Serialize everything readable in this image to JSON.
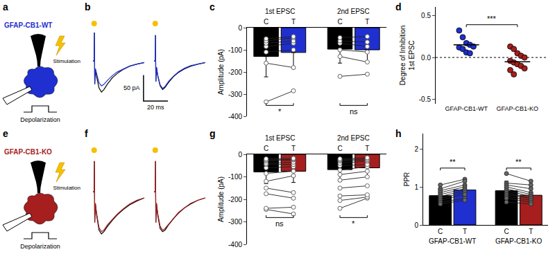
{
  "diagrams": [
    {
      "panel": "a",
      "label": "GFAP-CB1-WT",
      "color": "#1f2fd0",
      "stimulation": "Stimulation",
      "depolarization": "Depolarization"
    },
    {
      "panel": "e",
      "label": "GFAP-CB1-KO",
      "color": "#a61e1e",
      "stimulation": "Stimulation",
      "depolarization": "Depolarization"
    }
  ],
  "chart_data": [
    {
      "panel": "b",
      "type": "line",
      "tick_labels": false,
      "x": [
        0,
        1,
        1.2,
        1.5,
        2,
        3,
        5,
        7,
        9,
        12,
        16,
        20,
        25,
        30,
        36,
        42,
        46,
        50,
        51,
        51.2,
        51.5,
        52,
        53,
        55,
        57,
        59,
        62,
        66,
        70,
        75,
        80,
        86,
        92
      ],
      "series": [
        {
          "color": "#000000",
          "values": [
            0,
            0,
            55,
            -45,
            -15,
            -30,
            -52,
            -60,
            -55,
            -44,
            -32,
            -24,
            -16,
            -10,
            -6,
            -3,
            null,
            0,
            0,
            50,
            -40,
            -12,
            -28,
            -48,
            -55,
            -51,
            -41,
            -30,
            -22,
            -15,
            -10,
            -6,
            -3
          ]
        },
        {
          "color": "#1f2fd0",
          "values": [
            0,
            0,
            55,
            -45,
            -15,
            -25,
            -42,
            -48,
            -45,
            -37,
            -28,
            -21,
            -15,
            -10,
            -6,
            -3,
            null,
            0,
            0,
            50,
            -40,
            -12,
            -27,
            -46,
            -53,
            -49,
            -39,
            -29,
            -21,
            -14,
            -9,
            -6,
            -3
          ]
        }
      ],
      "stimuli": {
        "x": [
          1,
          51
        ],
        "color": "#f5c000"
      },
      "scale_bar": {
        "x": 20,
        "x_label": "20 ms",
        "y": 50,
        "y_label": "50 pA"
      }
    },
    {
      "panel": "c",
      "type": "bar",
      "categories": [
        "C",
        "T",
        "C",
        "T"
      ],
      "groups": [
        "1st EPSC",
        "2nd EPSC"
      ],
      "ylabel": "Amplitude (pA)",
      "ylim": [
        -400,
        0
      ],
      "yticks": [
        -400,
        -300,
        -200,
        -100,
        0
      ],
      "values": [
        -130,
        -112,
        -97,
        -100
      ],
      "errors": [
        92,
        73,
        63,
        55
      ],
      "colors": [
        "#000000",
        "#1f2fd0",
        "#000000",
        "#1f2fd0"
      ],
      "marker": "circle-open",
      "points": [
        [
          -335,
          -160,
          -110,
          -85,
          -70,
          -60,
          -50
        ],
        [
          -285,
          -180,
          -100,
          -70,
          -60,
          -45,
          -40
        ],
        [
          -220,
          -130,
          -100,
          -70,
          -60,
          -45
        ],
        [
          -210,
          -155,
          -110,
          -85,
          -65,
          -40
        ]
      ],
      "significance": [
        {
          "text": "*",
          "pair": [
            0,
            1
          ]
        },
        {
          "text": "ns",
          "pair": [
            2,
            3
          ]
        }
      ]
    },
    {
      "panel": "d",
      "type": "scatter",
      "categories": [
        "GFAP-CB1-WT",
        "GFAP-CB1-KO"
      ],
      "ylabel": "Degree of Inhibition 1st EPSC",
      "ylim": [
        -0.55,
        0.6
      ],
      "yticks": [
        -0.5,
        {
          "value": 0,
          "label": "0.0"
        },
        0.5
      ],
      "colors": [
        "#1f2fd0",
        "#a61e1e"
      ],
      "points": [
        [
          0.32,
          0.24,
          0.17,
          0.15,
          0.13,
          0.12,
          0.1,
          0.06,
          0.05
        ],
        [
          0.13,
          0.1,
          0.05,
          0.02,
          0,
          -0.04,
          -0.06,
          -0.08,
          -0.1,
          -0.13,
          -0.15,
          -0.2
        ]
      ],
      "means": [
        0.15,
        -0.05
      ],
      "reference_line": 0,
      "significance": [
        {
          "text": "***",
          "pair": [
            0,
            1
          ]
        }
      ]
    },
    {
      "panel": "f",
      "type": "line",
      "tick_labels": false,
      "x": [
        0,
        1,
        1.2,
        1.5,
        2,
        3,
        5,
        7,
        9,
        12,
        16,
        20,
        25,
        30,
        36,
        42,
        46,
        50,
        51,
        51.2,
        51.5,
        52,
        53,
        55,
        57,
        59,
        62,
        66,
        70,
        75,
        80,
        86,
        92
      ],
      "series": [
        {
          "color": "#000000",
          "values": [
            0,
            0,
            40,
            -40,
            -15,
            -30,
            -50,
            -55,
            -52,
            -45,
            -37,
            -30,
            -23,
            -17,
            -12,
            -8,
            null,
            0,
            0,
            40,
            -40,
            -15,
            -30,
            -48,
            -52,
            -50,
            -43,
            -35,
            -28,
            -21,
            -16,
            -11,
            -8
          ]
        },
        {
          "color": "#a61e1e",
          "values": [
            0,
            0,
            40,
            -40,
            -15,
            -28,
            -47,
            -52,
            -50,
            -43,
            -36,
            -29,
            -22,
            -16,
            -11,
            -8,
            null,
            0,
            0,
            40,
            -40,
            -15,
            -28,
            -45,
            -50,
            -48,
            -42,
            -34,
            -27,
            -21,
            -15,
            -11,
            -8
          ]
        }
      ],
      "stimuli": {
        "x": [
          1,
          51
        ],
        "color": "#f5c000"
      }
    },
    {
      "panel": "g",
      "type": "bar",
      "categories": [
        "C",
        "T",
        "C",
        "T"
      ],
      "groups": [
        "1st EPSC",
        "2nd EPSC"
      ],
      "ylabel": "Amplitude (pA)",
      "ylim": [
        -400,
        0
      ],
      "yticks": [
        -400,
        -300,
        -200,
        -100,
        0
      ],
      "values": [
        -78,
        -75,
        -68,
        -60
      ],
      "errors": [
        52,
        50,
        52,
        40
      ],
      "colors": [
        "#000000",
        "#a61e1e",
        "#000000",
        "#a61e1e"
      ],
      "marker": "circle-open",
      "points": [
        [
          -245,
          -240,
          -175,
          -150,
          -120,
          -85,
          -60,
          -45,
          -40,
          -30,
          -25,
          -20
        ],
        [
          -265,
          -235,
          -195,
          -170,
          -95,
          -75,
          -55,
          -45,
          -35,
          -25,
          -22,
          -18
        ],
        [
          -240,
          -205,
          -185,
          -150,
          -115,
          -90,
          -70,
          -50,
          -40,
          -30,
          -25,
          -20
        ],
        [
          -195,
          -190,
          -180,
          -140,
          -100,
          -75,
          -55,
          -45,
          -30,
          -25,
          -20,
          -15
        ]
      ],
      "significance": [
        {
          "text": "ns",
          "pair": [
            0,
            1
          ]
        },
        {
          "text": "*",
          "pair": [
            2,
            3
          ]
        }
      ]
    },
    {
      "panel": "h",
      "type": "bar",
      "categories": [
        "C",
        "T",
        "C",
        "T"
      ],
      "groups": [
        "GFAP-CB1-WT",
        "GFAP-CB1-KO"
      ],
      "ylabel": "PPR",
      "ylim": [
        0,
        2.4
      ],
      "yticks": [
        0,
        1,
        2
      ],
      "values": [
        0.77,
        0.92,
        0.9,
        0.78
      ],
      "errors": [
        0.2,
        0.22,
        0.25,
        0.2
      ],
      "colors": [
        "#000000",
        "#1f2fd0",
        "#000000",
        "#a61e1e"
      ],
      "marker": "circle",
      "points": [
        [
          1.05,
          0.95,
          0.9,
          0.85,
          0.8,
          0.75,
          0.7,
          0.65,
          0.6,
          0.55
        ],
        [
          1.2,
          1.15,
          1.05,
          1.0,
          0.95,
          0.9,
          0.85,
          0.8,
          0.7,
          0.65
        ],
        [
          1.35,
          1.1,
          1.05,
          1.0,
          0.95,
          0.9,
          0.85,
          0.8,
          0.75,
          0.7,
          0.6
        ],
        [
          1.15,
          1.05,
          0.95,
          0.85,
          0.8,
          0.75,
          0.7,
          0.7,
          0.65,
          0.6,
          0.55
        ]
      ],
      "significance": [
        {
          "text": "**",
          "pair": [
            0,
            1
          ]
        },
        {
          "text": "**",
          "pair": [
            2,
            3
          ]
        }
      ]
    }
  ]
}
